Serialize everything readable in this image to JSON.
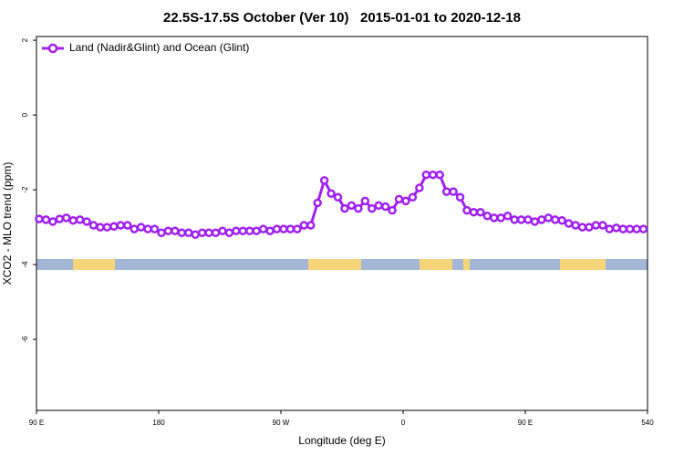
{
  "chart_data": {
    "type": "line",
    "title": "22.5S-17.5S October (Ver 10)   2015-01-01 to 2020-12-18",
    "x_label": "Longitude (deg E)",
    "y_label": "XCO2 - MLO trend (ppm)",
    "xlim": [
      90,
      540
    ],
    "ylim": [
      -7.9,
      2.1
    ],
    "xticks": [
      {
        "value": 90,
        "label": "90 E"
      },
      180,
      {
        "value": 270,
        "label": "90 W"
      },
      {
        "value": 360,
        "label": "0"
      },
      {
        "value": 450,
        "label": "90 E"
      },
      540
    ],
    "yticks": [
      -6,
      -4,
      -2,
      0,
      2
    ],
    "legend_position": "top-left",
    "x": [
      92,
      97,
      102,
      107,
      112,
      117,
      122,
      127,
      132,
      137,
      142,
      147,
      152,
      157,
      162,
      167,
      172,
      177,
      182,
      187,
      192,
      197,
      202,
      207,
      212,
      217,
      222,
      227,
      232,
      237,
      242,
      247,
      252,
      257,
      262,
      267,
      272,
      277,
      282,
      287,
      292,
      297,
      302,
      307,
      312,
      317,
      322,
      327,
      332,
      337,
      342,
      347,
      352,
      357,
      362,
      367,
      372,
      377,
      382,
      387,
      392,
      397,
      402,
      407,
      412,
      417,
      422,
      427,
      432,
      437,
      442,
      447,
      452,
      457,
      462,
      467,
      472,
      477,
      482,
      487,
      492,
      497,
      502,
      507,
      512,
      517,
      522,
      527,
      532,
      537
    ],
    "series": [
      {
        "name": "Land (Nadir&Glint) and Ocean (Glint)",
        "color": "#a020f0",
        "values": [
          -2.78,
          -2.8,
          -2.85,
          -2.78,
          -2.75,
          -2.82,
          -2.8,
          -2.85,
          -2.95,
          -3.0,
          -3.0,
          -2.98,
          -2.95,
          -2.95,
          -3.05,
          -3.0,
          -3.05,
          -3.05,
          -3.15,
          -3.1,
          -3.1,
          -3.15,
          -3.15,
          -3.2,
          -3.15,
          -3.15,
          -3.15,
          -3.1,
          -3.15,
          -3.1,
          -3.1,
          -3.1,
          -3.1,
          -3.05,
          -3.1,
          -3.05,
          -3.05,
          -3.05,
          -3.05,
          -2.95,
          -2.95,
          -2.35,
          -1.75,
          -2.1,
          -2.2,
          -2.5,
          -2.42,
          -2.5,
          -2.3,
          -2.5,
          -2.42,
          -2.45,
          -2.55,
          -2.25,
          -2.3,
          -2.2,
          -1.95,
          -1.6,
          -1.6,
          -1.6,
          -2.05,
          -2.05,
          -2.2,
          -2.55,
          -2.6,
          -2.6,
          -2.7,
          -2.75,
          -2.75,
          -2.7,
          -2.8,
          -2.8,
          -2.8,
          -2.85,
          -2.8,
          -2.75,
          -2.8,
          -2.82,
          -2.9,
          -2.95,
          -3.0,
          -3.0,
          -2.95,
          -2.95,
          -3.05,
          -3.02,
          -3.05,
          -3.05,
          -3.05,
          -3.05
        ]
      }
    ]
  }
}
